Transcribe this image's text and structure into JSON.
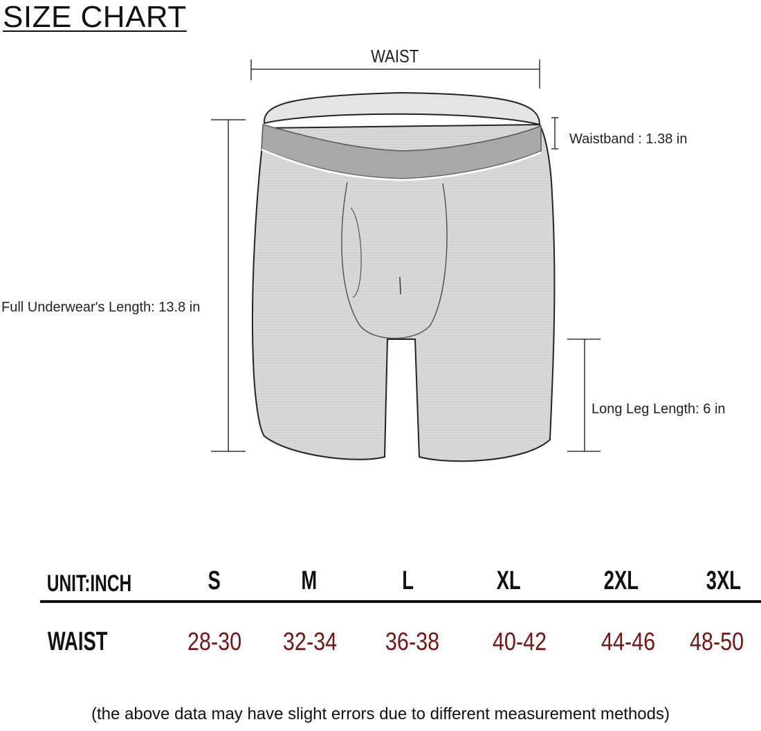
{
  "title": "SIZE CHART",
  "diagram": {
    "waist_label": "WAIST",
    "waistband_label": "Waistband : 1.38 in",
    "full_length_label": "Full Underwear's Length: 13.8 in",
    "leg_length_label": "Long Leg Length:  6 in"
  },
  "table": {
    "unit_label": "UNIT:INCH",
    "sizes": [
      "S",
      "M",
      "L",
      "XL",
      "2XL",
      "3XL"
    ],
    "rows": [
      {
        "label": "WAIST",
        "values": [
          "28-30",
          "32-34",
          "36-38",
          "40-42",
          "44-46",
          "48-50"
        ]
      }
    ],
    "value_color": "#7a1414"
  },
  "note": "(the above data may have slight errors due to different measurement methods)"
}
